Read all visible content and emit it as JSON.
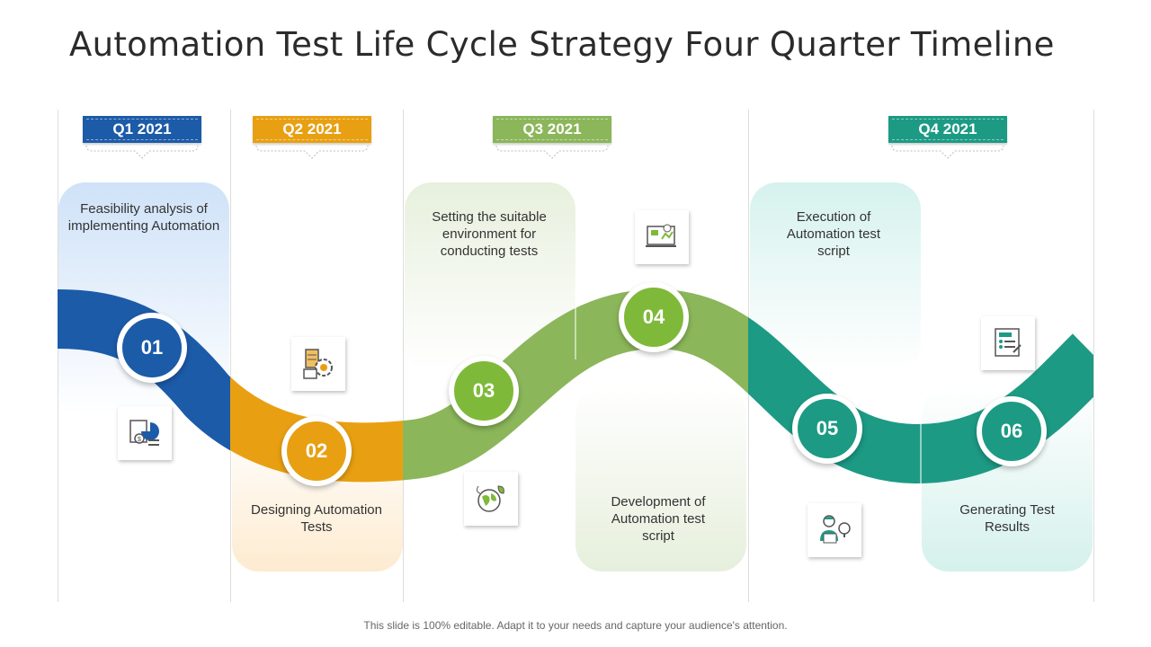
{
  "title": "Automation Test Life Cycle Strategy Four Quarter Timeline",
  "quarters": [
    {
      "label": "Q1 2021",
      "color": "#1c5ba8"
    },
    {
      "label": "Q2 2021",
      "color": "#e8a012"
    },
    {
      "label": "Q3 2021",
      "color": "#8bb65a"
    },
    {
      "label": "Q4 2021",
      "color": "#1c9a84"
    }
  ],
  "steps": [
    {
      "number": "01",
      "text": "Feasibility analysis of implementing Automation",
      "color": "#1c5ba8",
      "icon": "financial-report-icon"
    },
    {
      "number": "02",
      "text": "Designing Automation Tests",
      "color": "#e8a012",
      "icon": "server-gear-icon"
    },
    {
      "number": "03",
      "text": "Setting the suitable environment for conducting tests",
      "color": "#7fb93a",
      "icon": "eco-globe-icon"
    },
    {
      "number": "04",
      "text": "Development of Automation test script",
      "color": "#7fb93a",
      "icon": "dashboard-monitor-icon"
    },
    {
      "number": "05",
      "text": "Execution of Automation test script",
      "color": "#1c9a84",
      "icon": "engineer-idea-icon"
    },
    {
      "number": "06",
      "text": "Generating Test Results",
      "color": "#1c9a84",
      "icon": "checklist-icon"
    }
  ],
  "footer": "This slide is 100% editable. Adapt it to your needs and capture your audience's attention."
}
